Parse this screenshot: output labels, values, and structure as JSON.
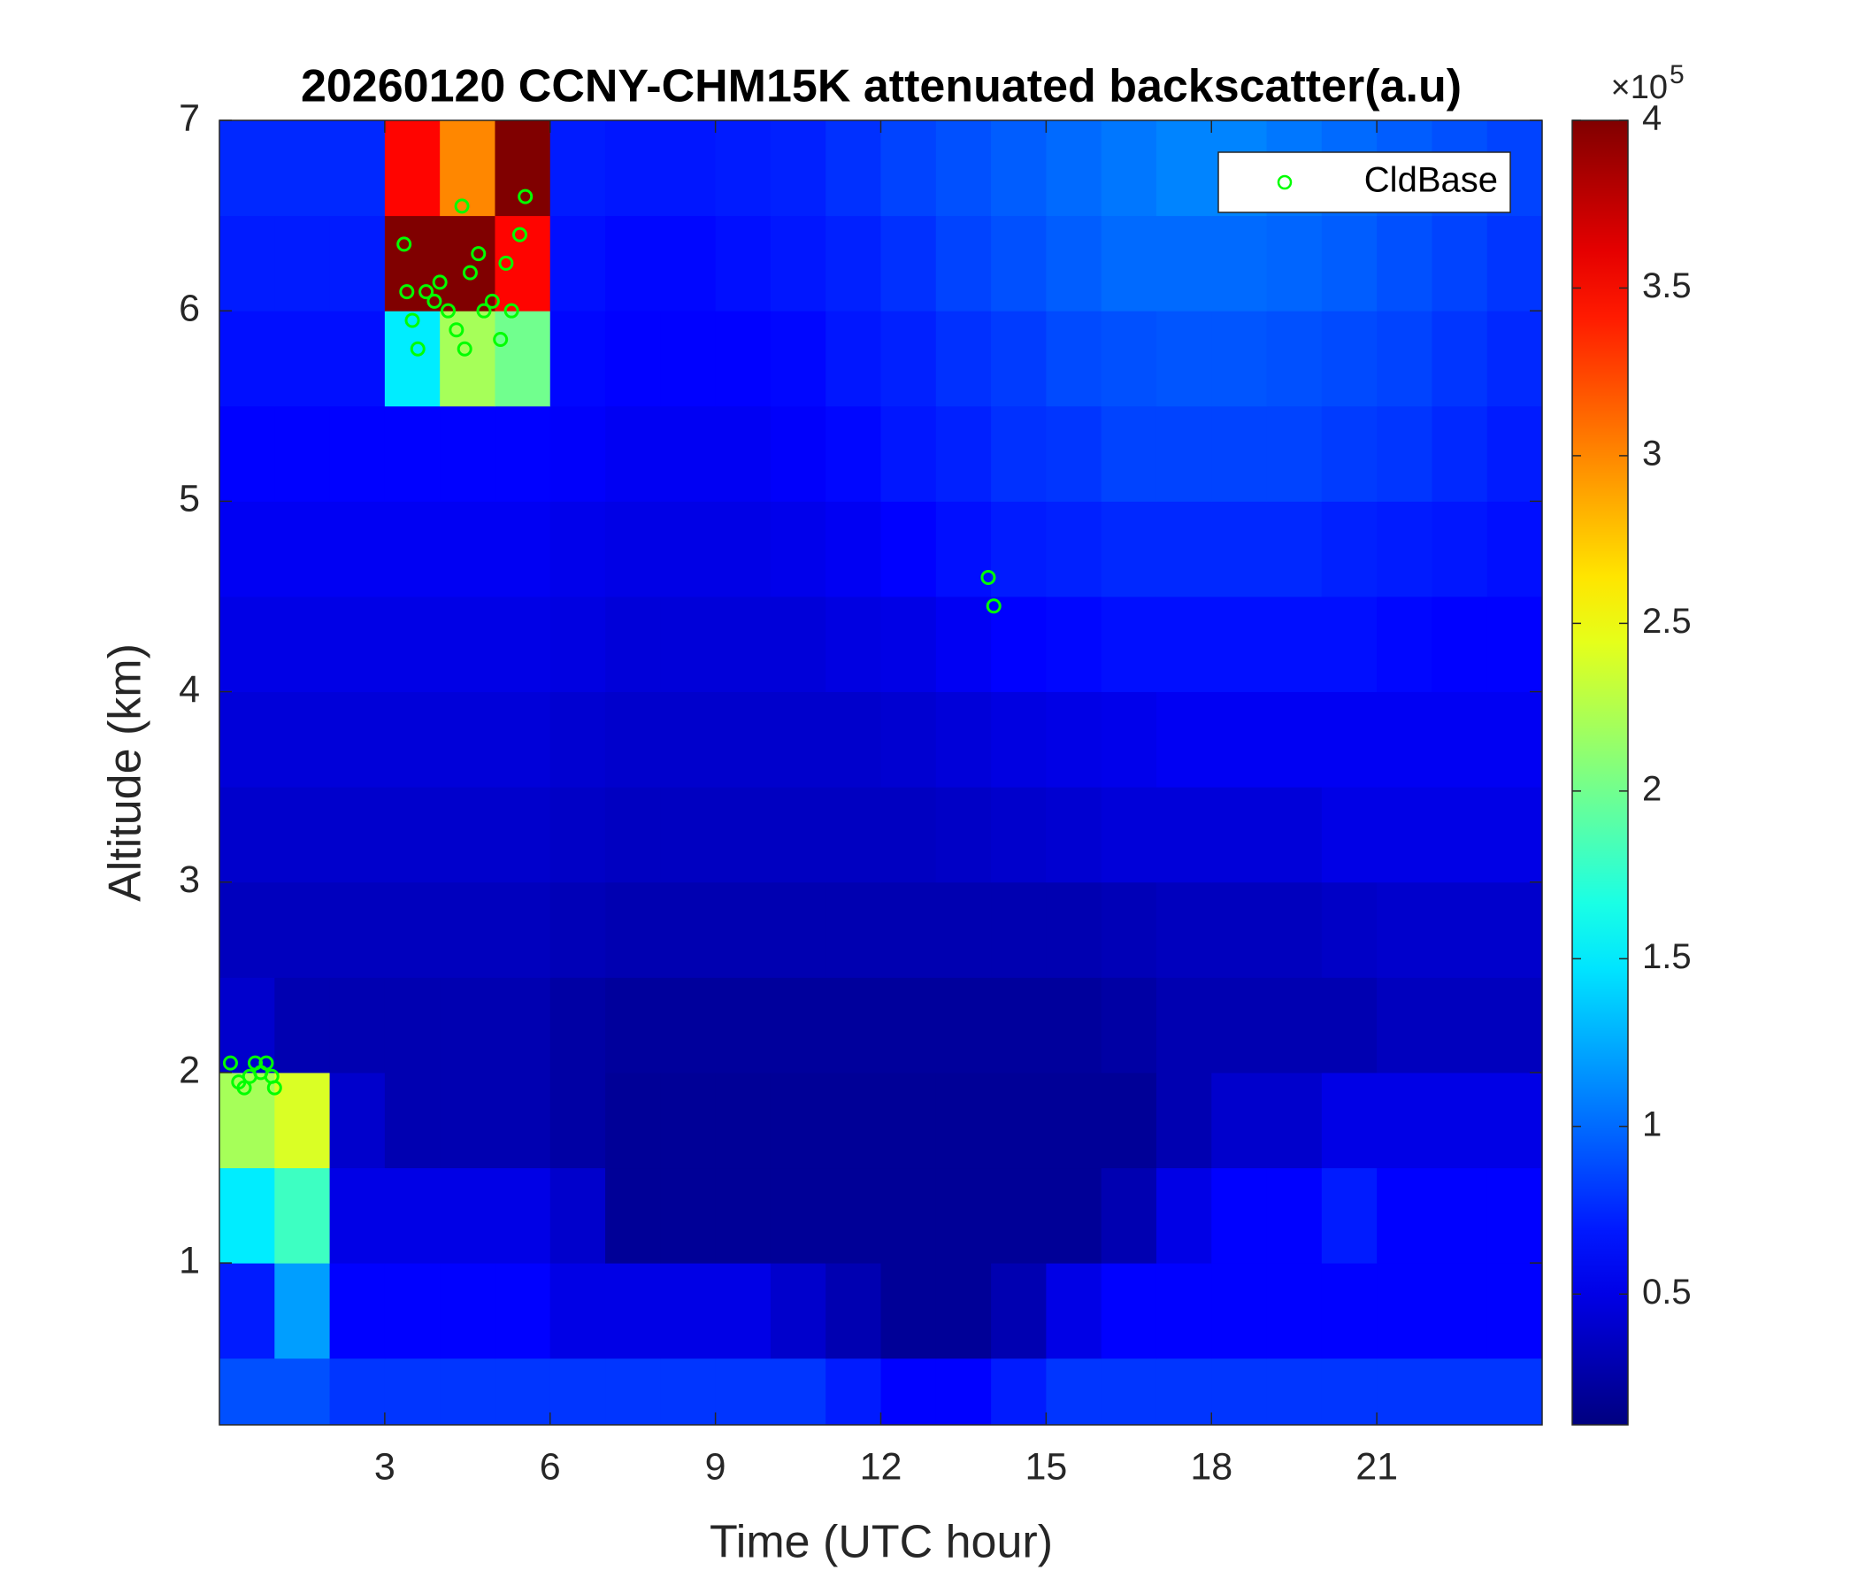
{
  "chart_data": {
    "type": "heatmap",
    "title": "20260120 CCNY-CHM15K attenuated backscatter(a.u)",
    "x_label": "Time (UTC hour)",
    "y_label": "Altitude (km)",
    "colormap": "jet",
    "colorbar_multiplier": "×10",
    "colorbar_exponent": "5",
    "clim": [
      0.11,
      4
    ],
    "cticks": [
      0.5,
      1,
      1.5,
      2,
      2.5,
      3,
      3.5,
      4
    ],
    "xlim": [
      0,
      24
    ],
    "ylim": [
      0.15,
      7
    ],
    "xticks": [
      3,
      6,
      9,
      12,
      15,
      18,
      21
    ],
    "yticks": [
      1,
      2,
      3,
      4,
      5,
      6,
      7
    ],
    "xbins": [
      0,
      1,
      2,
      3,
      4,
      5,
      6,
      7,
      8,
      9,
      10,
      11,
      12,
      13,
      14,
      15,
      16,
      17,
      18,
      19,
      20,
      21,
      22,
      23,
      24
    ],
    "ybins": [
      0.15,
      0.5,
      1,
      1.5,
      2,
      2.5,
      3,
      3.5,
      4,
      4.5,
      5,
      5.5,
      6,
      6.5,
      7
    ],
    "z": [
      [
        0.9,
        0.9,
        0.8,
        0.8,
        0.8,
        0.8,
        0.8,
        0.8,
        0.8,
        0.8,
        0.8,
        0.7,
        0.6,
        0.6,
        0.7,
        0.8,
        0.8,
        0.8,
        0.8,
        0.8,
        0.8,
        0.8,
        0.8,
        0.8
      ],
      [
        0.7,
        1.2,
        0.6,
        0.6,
        0.6,
        0.6,
        0.5,
        0.5,
        0.5,
        0.5,
        0.4,
        0.3,
        0.2,
        0.2,
        0.3,
        0.5,
        0.6,
        0.6,
        0.6,
        0.6,
        0.6,
        0.6,
        0.6,
        0.6
      ],
      [
        1.5,
        1.8,
        0.5,
        0.5,
        0.5,
        0.5,
        0.4,
        0.2,
        0.2,
        0.2,
        0.2,
        0.2,
        0.2,
        0.2,
        0.2,
        0.2,
        0.3,
        0.5,
        0.6,
        0.6,
        0.7,
        0.6,
        0.6,
        0.6
      ],
      [
        2.2,
        2.4,
        0.4,
        0.3,
        0.3,
        0.3,
        0.25,
        0.2,
        0.2,
        0.2,
        0.2,
        0.2,
        0.2,
        0.2,
        0.2,
        0.2,
        0.2,
        0.3,
        0.4,
        0.4,
        0.5,
        0.5,
        0.5,
        0.5
      ],
      [
        0.4,
        0.3,
        0.3,
        0.3,
        0.3,
        0.3,
        0.25,
        0.22,
        0.22,
        0.22,
        0.22,
        0.22,
        0.22,
        0.22,
        0.22,
        0.22,
        0.25,
        0.3,
        0.3,
        0.3,
        0.3,
        0.35,
        0.35,
        0.35
      ],
      [
        0.35,
        0.35,
        0.35,
        0.35,
        0.35,
        0.35,
        0.32,
        0.3,
        0.3,
        0.3,
        0.3,
        0.3,
        0.3,
        0.3,
        0.3,
        0.3,
        0.32,
        0.35,
        0.35,
        0.35,
        0.38,
        0.4,
        0.4,
        0.4
      ],
      [
        0.4,
        0.4,
        0.4,
        0.4,
        0.4,
        0.4,
        0.38,
        0.36,
        0.36,
        0.36,
        0.36,
        0.36,
        0.36,
        0.38,
        0.4,
        0.42,
        0.45,
        0.45,
        0.45,
        0.45,
        0.5,
        0.5,
        0.5,
        0.5
      ],
      [
        0.45,
        0.45,
        0.45,
        0.45,
        0.45,
        0.45,
        0.42,
        0.4,
        0.4,
        0.4,
        0.4,
        0.4,
        0.42,
        0.45,
        0.48,
        0.5,
        0.52,
        0.55,
        0.55,
        0.55,
        0.55,
        0.55,
        0.55,
        0.55
      ],
      [
        0.5,
        0.5,
        0.5,
        0.5,
        0.5,
        0.5,
        0.48,
        0.45,
        0.45,
        0.45,
        0.45,
        0.48,
        0.5,
        0.55,
        0.6,
        0.62,
        0.65,
        0.65,
        0.65,
        0.65,
        0.65,
        0.62,
        0.6,
        0.6
      ],
      [
        0.55,
        0.55,
        0.55,
        0.55,
        0.55,
        0.55,
        0.52,
        0.5,
        0.5,
        0.5,
        0.52,
        0.55,
        0.6,
        0.65,
        0.7,
        0.72,
        0.75,
        0.75,
        0.75,
        0.75,
        0.72,
        0.7,
        0.68,
        0.65
      ],
      [
        0.6,
        0.6,
        0.6,
        0.6,
        0.6,
        0.6,
        0.58,
        0.55,
        0.55,
        0.55,
        0.58,
        0.62,
        0.68,
        0.72,
        0.78,
        0.8,
        0.85,
        0.85,
        0.85,
        0.85,
        0.82,
        0.8,
        0.75,
        0.7
      ],
      [
        0.65,
        0.65,
        0.65,
        1.5,
        2.2,
        2.0,
        0.62,
        0.6,
        0.6,
        0.6,
        0.62,
        0.68,
        0.72,
        0.78,
        0.82,
        0.88,
        0.9,
        0.92,
        0.92,
        0.9,
        0.88,
        0.85,
        0.8,
        0.75
      ],
      [
        0.7,
        0.7,
        0.7,
        4,
        4,
        3.5,
        0.65,
        0.62,
        0.62,
        0.65,
        0.68,
        0.72,
        0.78,
        0.85,
        0.9,
        0.95,
        1.0,
        1.0,
        1.0,
        0.98,
        0.95,
        0.9,
        0.85,
        0.8
      ],
      [
        0.75,
        0.75,
        0.75,
        3.5,
        3.0,
        4,
        0.7,
        0.68,
        0.68,
        0.7,
        0.72,
        0.78,
        0.85,
        0.9,
        0.95,
        1.0,
        1.05,
        1.1,
        1.1,
        1.05,
        1.0,
        0.95,
        0.9,
        0.85
      ]
    ],
    "series": [
      {
        "name": "CldBase",
        "color": "#00ff00",
        "x": [
          0.2,
          0.35,
          0.45,
          0.55,
          0.65,
          0.75,
          0.85,
          0.95,
          1.0,
          3.35,
          3.4,
          3.5,
          3.6,
          3.75,
          3.9,
          4.0,
          4.15,
          4.3,
          4.4,
          4.45,
          4.55,
          4.7,
          4.8,
          4.95,
          5.1,
          5.2,
          5.3,
          5.45,
          5.55,
          13.95,
          14.05
        ],
        "values": [
          2.05,
          1.95,
          1.92,
          1.98,
          2.05,
          2.0,
          2.05,
          1.98,
          1.92,
          6.35,
          6.1,
          5.95,
          5.8,
          6.1,
          6.05,
          6.15,
          6.0,
          5.9,
          6.55,
          5.8,
          6.2,
          6.3,
          6.0,
          6.05,
          5.85,
          6.25,
          6.0,
          6.4,
          6.6,
          4.6,
          4.45
        ]
      }
    ],
    "legend": "northeast"
  }
}
